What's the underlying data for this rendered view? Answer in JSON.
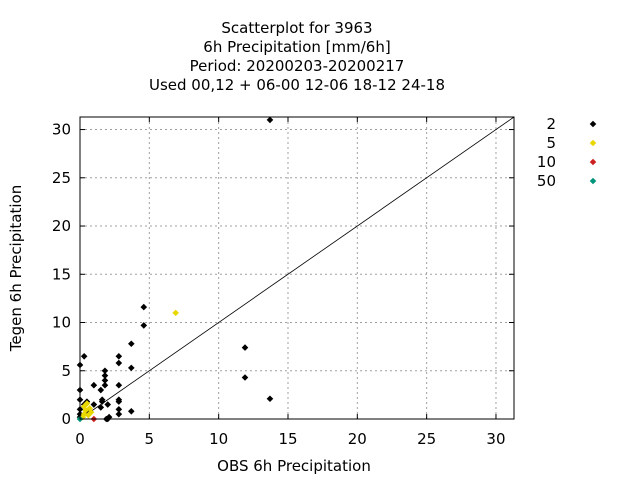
{
  "chart_data": {
    "type": "scatter",
    "title_lines": [
      "Scatterplot for      3963",
      "6h Precipitation [mm/6h]",
      "Period: 20200203-20200217",
      "Used  00,12  + 06-00 12-06 18-12 24-18"
    ],
    "xlabel": "OBS 6h Precipitation",
    "ylabel": "Tegen 6h Precipitation",
    "xlim": [
      0,
      31.3
    ],
    "ylim": [
      0,
      31.3
    ],
    "xticks": [
      0,
      5,
      10,
      15,
      20,
      25,
      30
    ],
    "yticks": [
      0,
      5,
      10,
      15,
      20,
      25,
      30
    ],
    "grid": true,
    "legend_position": "right",
    "diagonal_line": true,
    "series": [
      {
        "name": "2",
        "color": "#000000",
        "points": [
          [
            0,
            0.2
          ],
          [
            0,
            0.5
          ],
          [
            0,
            1.0
          ],
          [
            0,
            2.0
          ],
          [
            0,
            3.0
          ],
          [
            0,
            5.6
          ],
          [
            0.3,
            6.5
          ],
          [
            0.3,
            1.5
          ],
          [
            0.5,
            0.8
          ],
          [
            0.5,
            1.8
          ],
          [
            1.0,
            1.5
          ],
          [
            1.0,
            3.5
          ],
          [
            1.5,
            1.2
          ],
          [
            1.5,
            3.0
          ],
          [
            1.6,
            2.0
          ],
          [
            1.6,
            1.8
          ],
          [
            1.8,
            3.5
          ],
          [
            1.8,
            4.0
          ],
          [
            1.8,
            4.5
          ],
          [
            1.8,
            5.0
          ],
          [
            1.9,
            0
          ],
          [
            2.0,
            1.5
          ],
          [
            2.0,
            0
          ],
          [
            2.1,
            0.2
          ],
          [
            2.8,
            6.5
          ],
          [
            2.8,
            5.8
          ],
          [
            2.8,
            3.5
          ],
          [
            2.8,
            2.0
          ],
          [
            2.8,
            1.8
          ],
          [
            2.8,
            1.0
          ],
          [
            2.8,
            0.5
          ],
          [
            3.7,
            7.8
          ],
          [
            3.7,
            5.3
          ],
          [
            3.7,
            0.8
          ],
          [
            4.6,
            11.6
          ],
          [
            4.6,
            9.7
          ],
          [
            11.9,
            7.4
          ],
          [
            11.9,
            4.3
          ],
          [
            13.7,
            31.0
          ],
          [
            13.7,
            2.1
          ]
        ]
      },
      {
        "name": "5",
        "color": "#e8d800",
        "points": [
          [
            0.2,
            0.2
          ],
          [
            0.3,
            0.5
          ],
          [
            0.3,
            1.3
          ],
          [
            0.4,
            0.9
          ],
          [
            0.5,
            1.6
          ],
          [
            0.6,
            0.4
          ],
          [
            0.7,
            1.1
          ],
          [
            0.8,
            0.7
          ],
          [
            6.9,
            11.0
          ]
        ]
      },
      {
        "name": "10",
        "color": "#cc2020",
        "points": [
          [
            1.0,
            0
          ]
        ]
      },
      {
        "name": "50",
        "color": "#00957a",
        "points": [
          [
            0,
            0
          ]
        ]
      }
    ]
  }
}
